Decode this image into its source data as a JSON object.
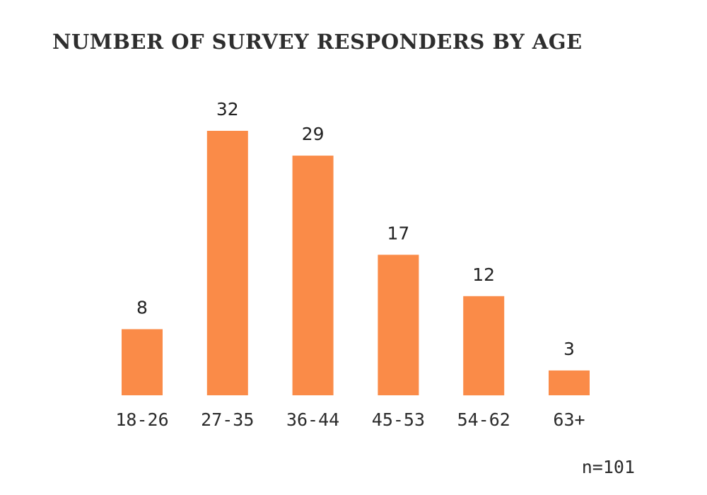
{
  "chart_data": {
    "type": "bar",
    "title": "NUMBER OF SURVEY RESPONDERS BY AGE",
    "categories": [
      "18-26",
      "27-35",
      "36-44",
      "45-53",
      "54-62",
      "63+"
    ],
    "values": [
      8,
      32,
      29,
      17,
      12,
      3
    ],
    "xlabel": "",
    "ylabel": "",
    "ylim": [
      0,
      32
    ],
    "grid": false,
    "data_labels": true,
    "bar_color": "#fa8b48",
    "note": "n=101"
  }
}
